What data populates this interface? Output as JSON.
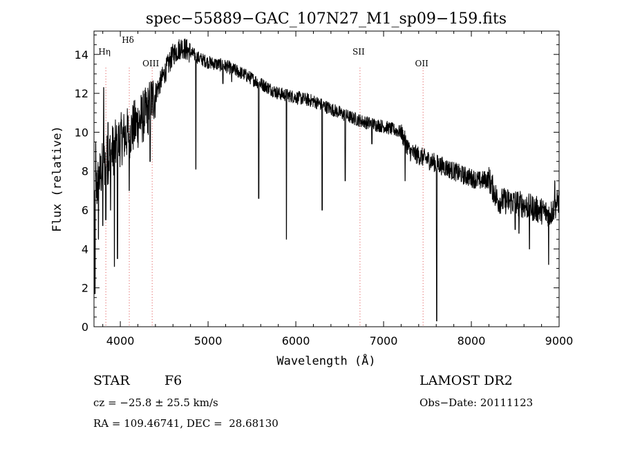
{
  "chart_data": {
    "type": "line",
    "title": "spec−55889−GAC_107N27_M1_sp09−159.fits",
    "xlabel": "Wavelength (Å)",
    "ylabel": "Flux (relative)",
    "xlim": [
      3700,
      9000
    ],
    "ylim": [
      0,
      15.2
    ],
    "x_ticks": [
      4000,
      5000,
      6000,
      7000,
      8000,
      9000
    ],
    "y_ticks": [
      0,
      2,
      4,
      6,
      8,
      10,
      12,
      14
    ],
    "x_tick_labels": [
      "4000",
      "5000",
      "6000",
      "7000",
      "8000",
      "9000"
    ],
    "y_tick_labels": [
      "0",
      "2",
      "4",
      "6",
      "8",
      "10",
      "12",
      "14"
    ],
    "grid": false,
    "line_color": "#000000",
    "marker_line_color": "#e05050",
    "continuum": [
      [
        3700,
        6.5
      ],
      [
        3750,
        7.5
      ],
      [
        3800,
        8.2
      ],
      [
        3900,
        9.0
      ],
      [
        4000,
        9.6
      ],
      [
        4100,
        10.0
      ],
      [
        4200,
        10.5
      ],
      [
        4300,
        11.0
      ],
      [
        4400,
        12.0
      ],
      [
        4500,
        13.0
      ],
      [
        4600,
        14.0
      ],
      [
        4700,
        14.4
      ],
      [
        4800,
        14.1
      ],
      [
        4900,
        13.8
      ],
      [
        5000,
        13.6
      ],
      [
        5200,
        13.4
      ],
      [
        5400,
        13.0
      ],
      [
        5600,
        12.5
      ],
      [
        5800,
        12.0
      ],
      [
        6000,
        11.8
      ],
      [
        6200,
        11.6
      ],
      [
        6400,
        11.2
      ],
      [
        6600,
        10.8
      ],
      [
        6800,
        10.5
      ],
      [
        7000,
        10.3
      ],
      [
        7200,
        10.0
      ],
      [
        7300,
        9.0
      ],
      [
        7500,
        8.6
      ],
      [
        7700,
        8.2
      ],
      [
        7900,
        7.8
      ],
      [
        8100,
        7.5
      ],
      [
        8200,
        7.6
      ],
      [
        8300,
        6.5
      ],
      [
        8500,
        6.4
      ],
      [
        8700,
        6.1
      ],
      [
        8900,
        5.8
      ],
      [
        9000,
        6.5
      ]
    ],
    "absorption_lines": [
      {
        "x": 3710,
        "y": 1.7
      },
      {
        "x": 3750,
        "y": 4.5
      },
      {
        "x": 3800,
        "y": 5.2
      },
      {
        "x": 3835,
        "y": 5.5
      },
      {
        "x": 3889,
        "y": 6.0
      },
      {
        "x": 3933,
        "y": 3.1
      },
      {
        "x": 3968,
        "y": 3.5
      },
      {
        "x": 4102,
        "y": 7.0
      },
      {
        "x": 4340,
        "y": 8.5
      },
      {
        "x": 4861,
        "y": 8.1
      },
      {
        "x": 5169,
        "y": 12.5
      },
      {
        "x": 5270,
        "y": 12.6
      },
      {
        "x": 5577,
        "y": 6.6
      },
      {
        "x": 5893,
        "y": 4.5
      },
      {
        "x": 6300,
        "y": 6.0
      },
      {
        "x": 6563,
        "y": 7.5
      },
      {
        "x": 6867,
        "y": 9.4
      },
      {
        "x": 7245,
        "y": 7.5
      },
      {
        "x": 7605,
        "y": 0.3
      },
      {
        "x": 8500,
        "y": 5.0
      },
      {
        "x": 8542,
        "y": 4.8
      },
      {
        "x": 8662,
        "y": 4.0
      },
      {
        "x": 8880,
        "y": 3.2
      }
    ],
    "emission_spikes": [
      {
        "x": 3720,
        "y": 9.5
      },
      {
        "x": 3810,
        "y": 12.3
      },
      {
        "x": 3860,
        "y": 10.5
      },
      {
        "x": 8950,
        "y": 7.5
      }
    ],
    "line_markers": [
      {
        "label": "Hη",
        "x": 3835
      },
      {
        "label": "Hδ",
        "x": 4102
      },
      {
        "label": "OIII",
        "x": 4363
      },
      {
        "label": "SII",
        "x": 6731
      },
      {
        "label": "OII",
        "x": 7450
      }
    ]
  },
  "footer": {
    "object_class": "STAR",
    "subclass": "F6",
    "survey": "LAMOST DR2",
    "redshift": "cz = −25.8 ± 25.5 km/s",
    "obs_date": "Obs−Date: 20111123",
    "coords": "RA = 109.46741, DEC =  28.68130"
  }
}
